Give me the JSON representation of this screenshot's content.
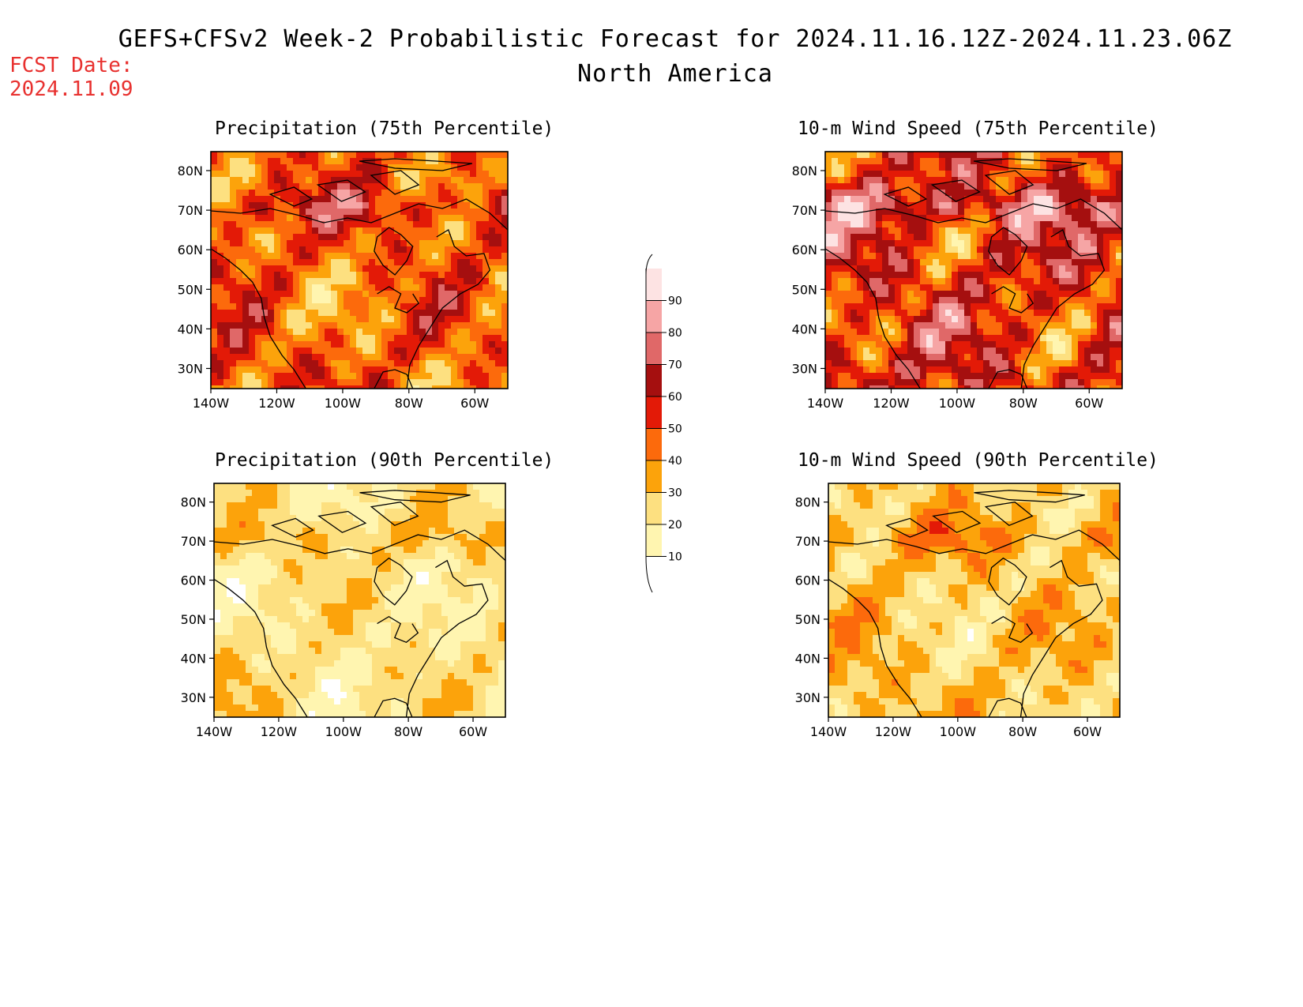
{
  "header": {
    "title": "GEFS+CFSv2 Week-2 Probabilistic Forecast for 2024.11.16.12Z-2024.11.23.06Z",
    "subtitle": "North America",
    "fcst_label": "FCST Date:",
    "fcst_value": "2024.11.09"
  },
  "panels": [
    {
      "id": "precip75",
      "title": "Precipitation (75th Percentile)",
      "intensity": 0.55
    },
    {
      "id": "wind75",
      "title": "10-m Wind Speed (75th Percentile)",
      "intensity": 0.75
    },
    {
      "id": "precip90",
      "title": "Precipitation (90th Percentile)",
      "intensity": 0.1
    },
    {
      "id": "wind90",
      "title": "10-m Wind Speed (90th Percentile)",
      "intensity": 0.22
    }
  ],
  "axes": {
    "lat_labels": [
      "30N",
      "40N",
      "50N",
      "60N",
      "70N",
      "80N"
    ],
    "lon_labels": [
      "140W",
      "120W",
      "100W",
      "80W",
      "60W"
    ]
  },
  "colorbar": {
    "levels": [
      10,
      20,
      30,
      40,
      50,
      60,
      70,
      80,
      90
    ],
    "colors": [
      "#fff5b0",
      "#fde080",
      "#fca30b",
      "#fc6a0c",
      "#e31a07",
      "#a50f0f",
      "#e06868",
      "#f6a5a5",
      "#fde3e3"
    ],
    "below_color": "#ffffff"
  }
}
